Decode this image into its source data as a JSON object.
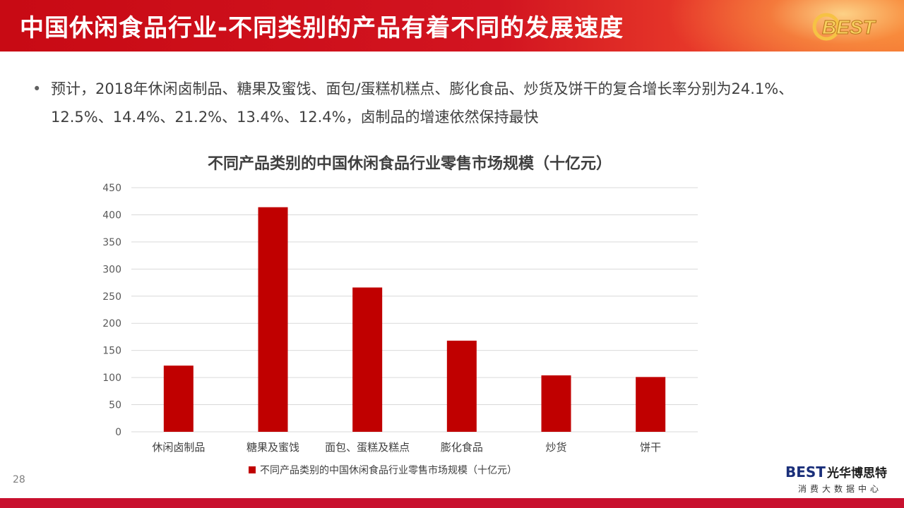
{
  "header": {
    "title": "中国休闲食品行业-不同类别的产品有着不同的发展速度",
    "logo_text": "BEST"
  },
  "bullet": {
    "symbol": "•",
    "text": "预计，2018年休闲卤制品、糖果及蜜饯、面包/蛋糕机糕点、膨化食品、炒货及饼干的复合增长率分别为24.1%、12.5%、14.4%、21.2%、13.4%、12.4%，卤制品的增速依然保持最快"
  },
  "chart_data": {
    "type": "bar",
    "title": "不同产品类别的中国休闲食品行业零售市场规模（十亿元）",
    "categories": [
      "休闲卤制品",
      "糖果及蜜饯",
      "面包、蛋糕及糕点",
      "膨化食品",
      "炒货",
      "饼干"
    ],
    "series": [
      {
        "name": "不同产品类别的中国休闲食品行业零售市场规模（十亿元）",
        "values": [
          122,
          414,
          266,
          168,
          104,
          101
        ]
      }
    ],
    "ylim": [
      0,
      450
    ],
    "yticks": [
      0,
      50,
      100,
      150,
      200,
      250,
      300,
      350,
      400,
      450
    ],
    "grid": true,
    "legend": "bottom",
    "bar_color": "#c00000"
  },
  "footer": {
    "page_number": "28",
    "brand_en": "BEST",
    "brand_cn": "光华博思特",
    "brand_sub": "消费大数据中心"
  }
}
